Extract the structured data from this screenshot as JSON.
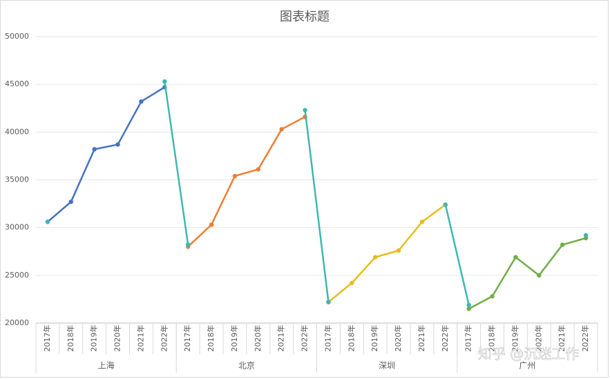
{
  "chart_data": {
    "type": "line",
    "title": "图表标题",
    "categories": [
      "2017年",
      "2018年",
      "2019年",
      "2020年",
      "2021年",
      "2022年",
      "2017年",
      "2018年",
      "2019年",
      "2020年",
      "2021年",
      "2022年",
      "2017年",
      "2018年",
      "2019年",
      "2020年",
      "2021年",
      "2022年",
      "2017年",
      "2018年",
      "2019年",
      "2020年",
      "2021年",
      "2022年"
    ],
    "groups": [
      "上海",
      "北京",
      "深圳",
      "广州"
    ],
    "series": [
      {
        "color": "#4472c4",
        "values": [
          30600,
          32700,
          38200,
          38700,
          43200,
          44700,
          null,
          null,
          null,
          null,
          null,
          null,
          null,
          null,
          null,
          null,
          null,
          null,
          null,
          null,
          null,
          null,
          null,
          null
        ]
      },
      {
        "color": "#ed7d31",
        "values": [
          null,
          null,
          null,
          null,
          null,
          null,
          28000,
          30300,
          35400,
          36100,
          40300,
          41600,
          null,
          null,
          null,
          null,
          null,
          null,
          null,
          null,
          null,
          null,
          null,
          null
        ]
      },
      {
        "color": "#e6bd1a",
        "values": [
          null,
          null,
          null,
          null,
          null,
          null,
          null,
          null,
          null,
          null,
          null,
          null,
          22200,
          24200,
          26900,
          27600,
          30600,
          32400,
          null,
          null,
          null,
          null,
          null,
          null
        ]
      },
      {
        "color": "#70ad47",
        "values": [
          null,
          null,
          null,
          null,
          null,
          null,
          null,
          null,
          null,
          null,
          null,
          null,
          null,
          null,
          null,
          null,
          null,
          null,
          21500,
          22800,
          26900,
          25000,
          28200,
          28900
        ]
      },
      {
        "color": "#3cb8b0",
        "values": [
          30600,
          null,
          null,
          null,
          null,
          45300,
          28200,
          null,
          null,
          null,
          null,
          42300,
          22200,
          null,
          null,
          null,
          null,
          32400,
          21900,
          null,
          null,
          null,
          null,
          29200
        ]
      }
    ],
    "ylim": [
      20000,
      50000
    ],
    "yticks": [
      20000,
      25000,
      30000,
      35000,
      40000,
      45000,
      50000
    ],
    "grid": true,
    "watermark": "知乎 @沉迷工作"
  }
}
